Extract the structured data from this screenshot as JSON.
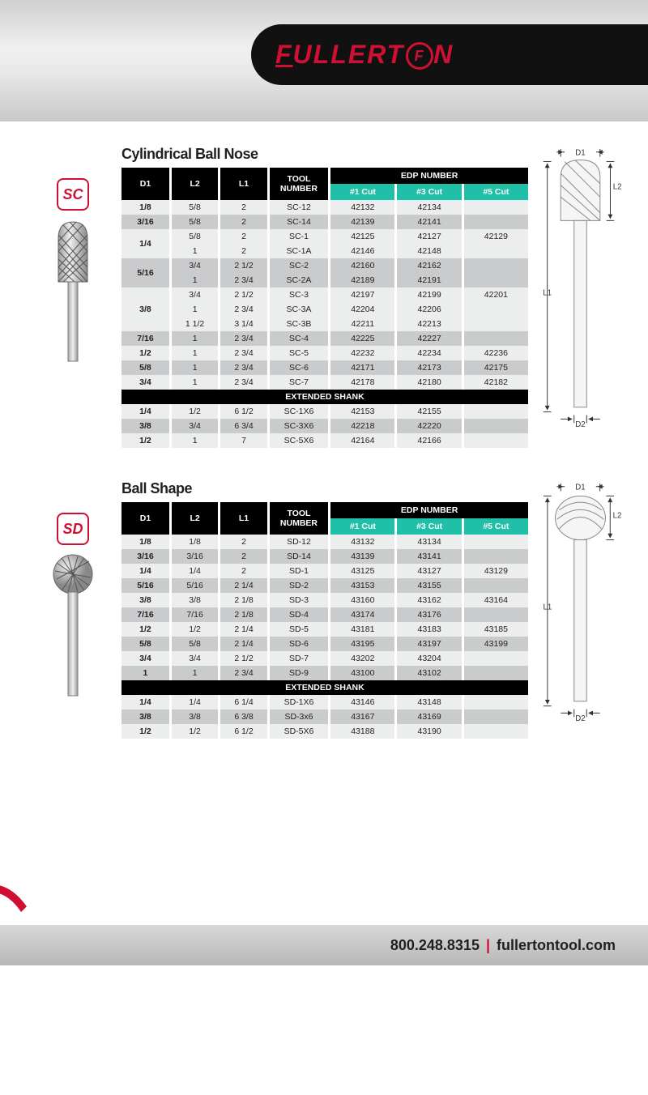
{
  "brand": "FULLERTON",
  "footer": {
    "phone": "800.248.8315",
    "site": "fullertontool.com"
  },
  "diagram_labels": {
    "d1": "D1",
    "d2": "D2",
    "l1": "L1",
    "l2": "L2"
  },
  "table_headers": {
    "d1": "D1",
    "l2": "L2",
    "l1": "L1",
    "tool": "TOOL NUMBER",
    "edp": "EDP NUMBER",
    "c1": "#1 Cut",
    "c3": "#3 Cut",
    "c5": "#5 Cut",
    "ext": "EXTENDED SHANK"
  },
  "colors": {
    "brand_red": "#d01033",
    "teal": "#1fbfa8",
    "black": "#000000"
  },
  "sections": [
    {
      "badge": "SC",
      "title": "Cylindrical Ball Nose",
      "shape": "cylinder-ball",
      "rows": [
        {
          "d1": "1/8",
          "l2": "5/8",
          "l1": "2",
          "tool": "SC-12",
          "c1": "42132",
          "c3": "42134",
          "c5": "",
          "shade": "light"
        },
        {
          "d1": "3/16",
          "l2": "5/8",
          "l1": "2",
          "tool": "SC-14",
          "c1": "42139",
          "c3": "42141",
          "c5": "",
          "shade": "dark"
        },
        {
          "d1": "1/4",
          "span": 2,
          "l2": "5/8",
          "l1": "2",
          "tool": "SC-1",
          "c1": "42125",
          "c3": "42127",
          "c5": "42129",
          "shade": "light"
        },
        {
          "l2": "1",
          "l1": "2",
          "tool": "SC-1A",
          "c1": "42146",
          "c3": "42148",
          "c5": "",
          "shade": "light"
        },
        {
          "d1": "5/16",
          "span": 2,
          "l2": "3/4",
          "l1": "2 1/2",
          "tool": "SC-2",
          "c1": "42160",
          "c3": "42162",
          "c5": "",
          "shade": "dark"
        },
        {
          "l2": "1",
          "l1": "2 3/4",
          "tool": "SC-2A",
          "c1": "42189",
          "c3": "42191",
          "c5": "",
          "shade": "dark"
        },
        {
          "d1": "3/8",
          "span": 3,
          "l2": "3/4",
          "l1": "2 1/2",
          "tool": "SC-3",
          "c1": "42197",
          "c3": "42199",
          "c5": "42201",
          "shade": "light"
        },
        {
          "l2": "1",
          "l1": "2 3/4",
          "tool": "SC-3A",
          "c1": "42204",
          "c3": "42206",
          "c5": "",
          "shade": "light"
        },
        {
          "l2": "1 1/2",
          "l1": "3 1/4",
          "tool": "SC-3B",
          "c1": "42211",
          "c3": "42213",
          "c5": "",
          "shade": "light"
        },
        {
          "d1": "7/16",
          "l2": "1",
          "l1": "2 3/4",
          "tool": "SC-4",
          "c1": "42225",
          "c3": "42227",
          "c5": "",
          "shade": "dark"
        },
        {
          "d1": "1/2",
          "l2": "1",
          "l1": "2 3/4",
          "tool": "SC-5",
          "c1": "42232",
          "c3": "42234",
          "c5": "42236",
          "shade": "light"
        },
        {
          "d1": "5/8",
          "l2": "1",
          "l1": "2 3/4",
          "tool": "SC-6",
          "c1": "42171",
          "c3": "42173",
          "c5": "42175",
          "shade": "dark"
        },
        {
          "d1": "3/4",
          "l2": "1",
          "l1": "2 3/4",
          "tool": "SC-7",
          "c1": "42178",
          "c3": "42180",
          "c5": "42182",
          "shade": "light"
        }
      ],
      "ext_rows": [
        {
          "d1": "1/4",
          "l2": "1/2",
          "l1": "6 1/2",
          "tool": "SC-1X6",
          "c1": "42153",
          "c3": "42155",
          "c5": "",
          "shade": "light"
        },
        {
          "d1": "3/8",
          "l2": "3/4",
          "l1": "6 3/4",
          "tool": "SC-3X6",
          "c1": "42218",
          "c3": "42220",
          "c5": "",
          "shade": "dark"
        },
        {
          "d1": "1/2",
          "l2": "1",
          "l1": "7",
          "tool": "SC-5X6",
          "c1": "42164",
          "c3": "42166",
          "c5": "",
          "shade": "light"
        }
      ]
    },
    {
      "badge": "SD",
      "title": "Ball Shape",
      "shape": "ball",
      "rows": [
        {
          "d1": "1/8",
          "l2": "1/8",
          "l1": "2",
          "tool": "SD-12",
          "c1": "43132",
          "c3": "43134",
          "c5": "",
          "shade": "light"
        },
        {
          "d1": "3/16",
          "l2": "3/16",
          "l1": "2",
          "tool": "SD-14",
          "c1": "43139",
          "c3": "43141",
          "c5": "",
          "shade": "dark"
        },
        {
          "d1": "1/4",
          "l2": "1/4",
          "l1": "2",
          "tool": "SD-1",
          "c1": "43125",
          "c3": "43127",
          "c5": "43129",
          "shade": "light"
        },
        {
          "d1": "5/16",
          "l2": "5/16",
          "l1": "2 1/4",
          "tool": "SD-2",
          "c1": "43153",
          "c3": "43155",
          "c5": "",
          "shade": "dark"
        },
        {
          "d1": "3/8",
          "l2": "3/8",
          "l1": "2 1/8",
          "tool": "SD-3",
          "c1": "43160",
          "c3": "43162",
          "c5": "43164",
          "shade": "light"
        },
        {
          "d1": "7/16",
          "l2": "7/16",
          "l1": "2 1/8",
          "tool": "SD-4",
          "c1": "43174",
          "c3": "43176",
          "c5": "",
          "shade": "dark"
        },
        {
          "d1": "1/2",
          "l2": "1/2",
          "l1": "2 1/4",
          "tool": "SD-5",
          "c1": "43181",
          "c3": "43183",
          "c5": "43185",
          "shade": "light"
        },
        {
          "d1": "5/8",
          "l2": "5/8",
          "l1": "2 1/4",
          "tool": "SD-6",
          "c1": "43195",
          "c3": "43197",
          "c5": "43199",
          "shade": "dark"
        },
        {
          "d1": "3/4",
          "l2": "3/4",
          "l1": "2 1/2",
          "tool": "SD-7",
          "c1": "43202",
          "c3": "43204",
          "c5": "",
          "shade": "light"
        },
        {
          "d1": "1",
          "l2": "1",
          "l1": "2 3/4",
          "tool": "SD-9",
          "c1": "43100",
          "c3": "43102",
          "c5": "",
          "shade": "dark"
        }
      ],
      "ext_rows": [
        {
          "d1": "1/4",
          "l2": "1/4",
          "l1": "6 1/4",
          "tool": "SD-1X6",
          "c1": "43146",
          "c3": "43148",
          "c5": "",
          "shade": "light"
        },
        {
          "d1": "3/8",
          "l2": "3/8",
          "l1": "6 3/8",
          "tool": "SD-3x6",
          "c1": "43167",
          "c3": "43169",
          "c5": "",
          "shade": "dark"
        },
        {
          "d1": "1/2",
          "l2": "1/2",
          "l1": "6 1/2",
          "tool": "SD-5X6",
          "c1": "43188",
          "c3": "43190",
          "c5": "",
          "shade": "light"
        }
      ]
    }
  ]
}
